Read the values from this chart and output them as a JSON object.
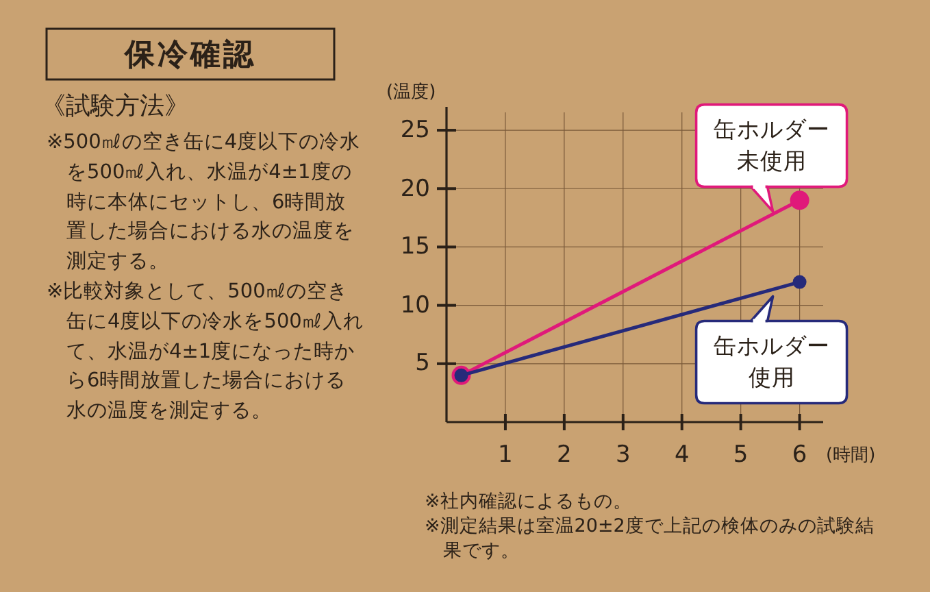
{
  "chart_data": {
    "type": "line",
    "title": "保冷確認",
    "subtitle": "《試験方法》",
    "xlabel": "(時間)",
    "ylabel": "(温度)",
    "x": [
      0.25,
      6
    ],
    "xlim": [
      0,
      6.4
    ],
    "ylim": [
      0,
      27
    ],
    "xticks": [
      1,
      2,
      3,
      4,
      5,
      6
    ],
    "yticks": [
      5,
      10,
      15,
      20,
      25
    ],
    "grid": true,
    "marker": "circle",
    "series": [
      {
        "name": "缶ホルダー未使用",
        "color": "#e0197a",
        "values": [
          4,
          19
        ]
      },
      {
        "name": "缶ホルダー使用",
        "color": "#262a7a",
        "values": [
          4,
          12
        ]
      }
    ],
    "annotations": [
      "※500㎖の空き缶に4度以下の冷水を500㎖入れ、水温が4±1度の時に本体にセットし、6時間放置した場合における水の温度を測定する。",
      "※比較対象として、500㎖の空き缶に4度以下の冷水を500㎖入れて、水温が4±1度になった時から6時間放置した場合における水の温度を測定する。",
      "※社内確認によるもの。",
      "※測定結果は室温20±2度で上記の検体のみの試験結果です。"
    ]
  }
}
